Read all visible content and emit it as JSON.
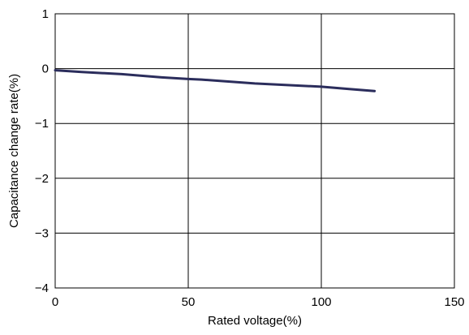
{
  "chart_data": {
    "type": "line",
    "title": "",
    "xlabel": "Rated voltage(%)",
    "ylabel": "Capacitance change rate(%)",
    "xlim": [
      0,
      150
    ],
    "ylim": [
      -4,
      1
    ],
    "xticks": [
      0,
      50,
      100,
      150
    ],
    "xtick_labels": [
      "0",
      "50",
      "100",
      "150"
    ],
    "yticks": [
      1,
      0,
      -1,
      -2,
      -3,
      -4
    ],
    "ytick_labels": [
      "1",
      "0",
      "−1",
      "−2",
      "−3",
      "−4"
    ],
    "grid": true,
    "legend": "none",
    "series": [
      {
        "color": "#2b2d5c",
        "x": [
          0,
          10,
          25,
          40,
          50,
          55,
          75,
          100,
          110,
          120
        ],
        "y": [
          -0.03,
          -0.06,
          -0.1,
          -0.16,
          -0.19,
          -0.2,
          -0.27,
          -0.33,
          -0.37,
          -0.41
        ]
      }
    ]
  }
}
